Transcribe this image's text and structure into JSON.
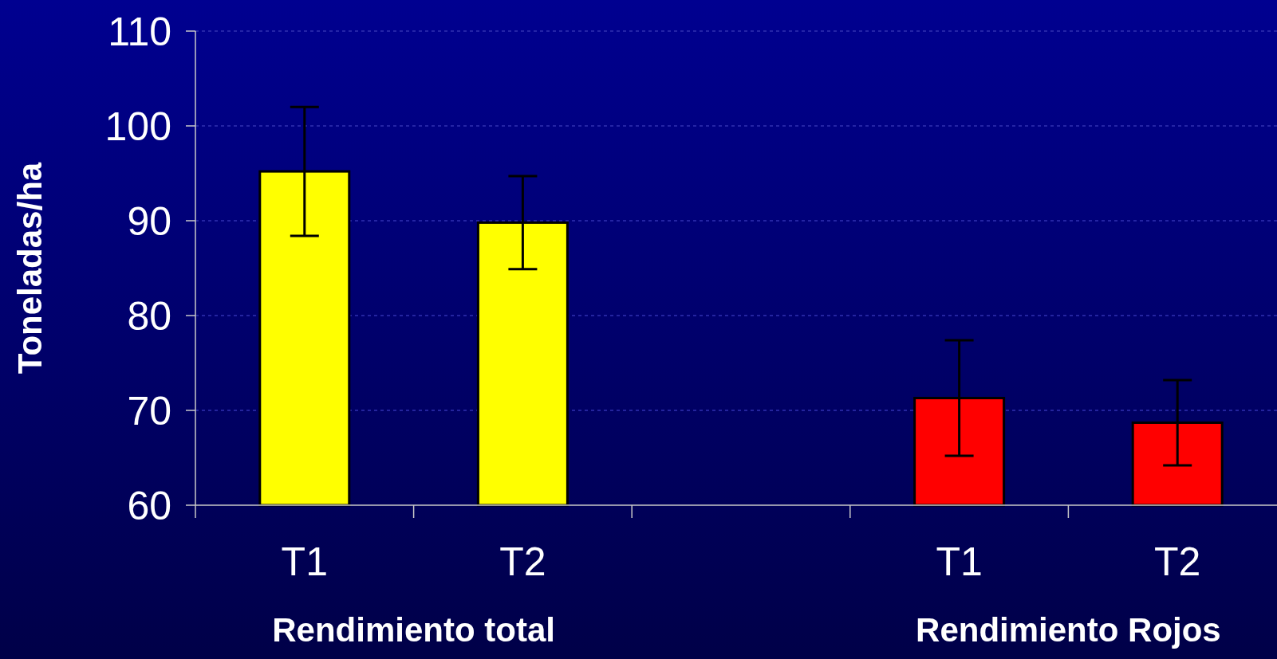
{
  "chart_data": {
    "type": "bar",
    "ylabel": "Toneladas/ha",
    "categories": [
      "T1",
      "T2",
      null,
      "T1",
      "T2"
    ],
    "series": [
      {
        "color": "#ffff00",
        "values": [
          95.2,
          89.8,
          null,
          null,
          null
        ],
        "errors": [
          6.8,
          4.9,
          null,
          null,
          null
        ]
      },
      {
        "color": "#ff0000",
        "values": [
          null,
          null,
          null,
          71.3,
          68.7
        ],
        "errors": [
          null,
          null,
          null,
          6.1,
          4.5
        ]
      }
    ],
    "annotations": [
      "Rendimiento total",
      "Rendimiento Rojos"
    ],
    "ylim": [
      60,
      110
    ],
    "yticks": [
      60,
      70,
      80,
      90,
      100,
      110
    ],
    "grid": "y"
  }
}
